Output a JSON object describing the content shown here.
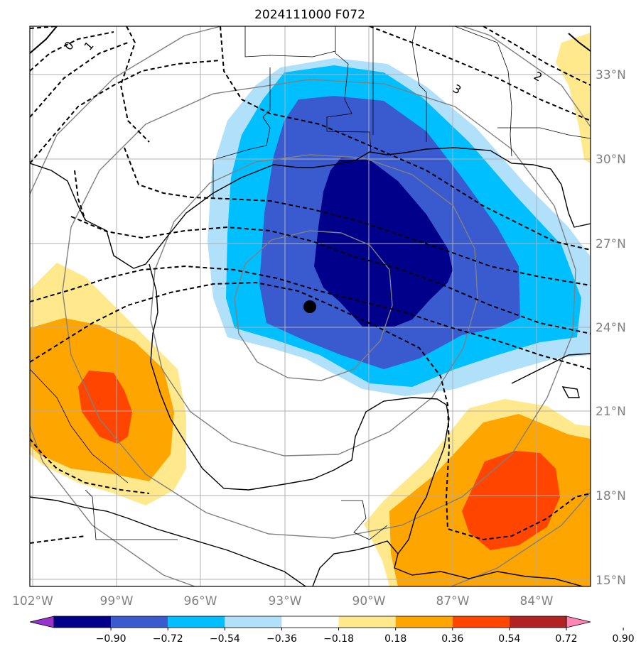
{
  "title": "2024111000 F072",
  "lat_labels": [
    "33°N",
    "30°N",
    "27°N",
    "24°N",
    "21°N",
    "18°N",
    "15°N"
  ],
  "lon_labels": [
    "102°W",
    "99°W",
    "96°W",
    "93°W",
    "90°W",
    "87°W",
    "84°W"
  ],
  "contour_labels": [
    "0",
    "1",
    "3",
    "2"
  ],
  "colorbar": {
    "ticks": [
      "−0.90",
      "−0.72",
      "−0.54",
      "−0.36",
      "−0.18",
      "0.18",
      "0.36",
      "0.54",
      "0.72",
      "0.90"
    ],
    "colors": [
      "#9932cc",
      "#00008b",
      "#3a5bd0",
      "#00bfff",
      "#b0e0fa",
      "#ffffff",
      "#ffe98c",
      "#ffa500",
      "#ff4500",
      "#b22222",
      "#ff86b4"
    ]
  },
  "colors": {
    "neg_strong": "#00008b",
    "neg_mid": "#3a5bd0",
    "neg_weak": "#00bfff",
    "neg_faint": "#b0e0fa",
    "pos_faint": "#ffe98c",
    "pos_weak": "#ffa500",
    "pos_mid": "#ff4500"
  }
}
